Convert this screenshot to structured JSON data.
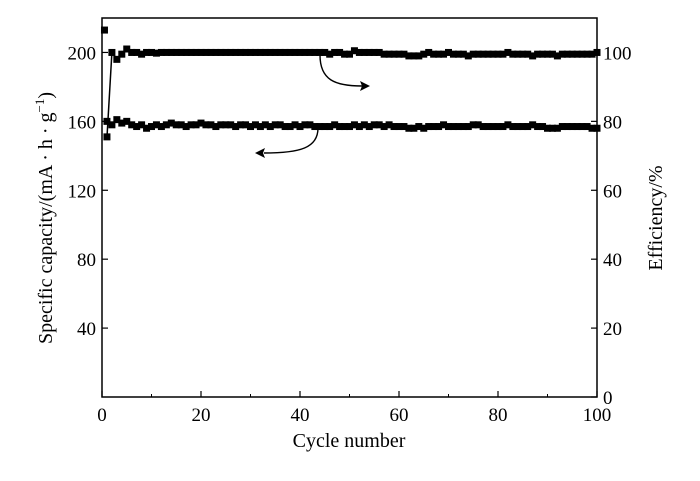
{
  "chart_data": {
    "type": "scatter",
    "xlabel": "Cycle number",
    "ylabel_left": {
      "prefix": "Specific capacity/(mA · h · g",
      "sup": "−1",
      "suffix": ")"
    },
    "ylabel_right": "Efficiency/%",
    "xlim": [
      0,
      100
    ],
    "ylim_left": [
      0,
      220
    ],
    "ylim_right": [
      0,
      110
    ],
    "x_ticks": [
      0,
      20,
      40,
      60,
      80,
      100
    ],
    "y_left_ticks": [
      40,
      80,
      120,
      160,
      200
    ],
    "y_right_ticks": [
      0,
      20,
      40,
      60,
      80,
      100
    ],
    "grid": false,
    "series": [
      {
        "axis": "left",
        "marker": "square",
        "x": [
          1,
          2,
          3,
          4,
          5,
          6,
          7,
          8,
          9,
          10,
          11,
          12,
          13,
          14,
          15,
          16,
          17,
          18,
          19,
          20,
          21,
          22,
          23,
          24,
          25,
          26,
          27,
          28,
          29,
          30,
          31,
          32,
          33,
          34,
          35,
          36,
          37,
          38,
          39,
          40,
          41,
          42,
          43,
          44,
          45,
          46,
          47,
          48,
          49,
          50,
          51,
          52,
          53,
          54,
          55,
          56,
          57,
          58,
          59,
          60,
          61,
          62,
          63,
          64,
          65,
          66,
          67,
          68,
          69,
          70,
          71,
          72,
          73,
          74,
          75,
          76,
          77,
          78,
          79,
          80,
          81,
          82,
          83,
          84,
          85,
          86,
          87,
          88,
          89,
          90,
          91,
          92,
          93,
          94,
          95,
          96,
          97,
          98,
          99,
          100
        ],
        "y": [
          160,
          158,
          161,
          159,
          160,
          158,
          157,
          158,
          156,
          157,
          158,
          157,
          158,
          159,
          158,
          158,
          157,
          158,
          158,
          159,
          158,
          158,
          157,
          158,
          158,
          158,
          157,
          158,
          158,
          157,
          158,
          157,
          158,
          157,
          158,
          158,
          157,
          157,
          158,
          157,
          158,
          158,
          157,
          157,
          157,
          157,
          158,
          157,
          157,
          157,
          158,
          157,
          158,
          157,
          158,
          158,
          157,
          158,
          157,
          157,
          157,
          156,
          156,
          157,
          156,
          157,
          157,
          157,
          158,
          157,
          157,
          157,
          157,
          157,
          158,
          158,
          157,
          157,
          157,
          157,
          157,
          158,
          157,
          157,
          157,
          157,
          158,
          157,
          157,
          156,
          156,
          156,
          157,
          157,
          157,
          157,
          157,
          157,
          156,
          156
        ]
      },
      {
        "axis": "right",
        "marker": "square",
        "x": [
          1,
          2,
          3,
          4,
          5,
          6,
          7,
          8,
          9,
          10,
          11,
          12,
          13,
          14,
          15,
          16,
          17,
          18,
          19,
          20,
          21,
          22,
          23,
          24,
          25,
          26,
          27,
          28,
          29,
          30,
          31,
          32,
          33,
          34,
          35,
          36,
          37,
          38,
          39,
          40,
          41,
          42,
          43,
          44,
          45,
          46,
          47,
          48,
          49,
          50,
          51,
          52,
          53,
          54,
          55,
          56,
          57,
          58,
          59,
          60,
          61,
          62,
          63,
          64,
          65,
          66,
          67,
          68,
          69,
          70,
          71,
          72,
          73,
          74,
          75,
          76,
          77,
          78,
          79,
          80,
          81,
          82,
          83,
          84,
          85,
          86,
          87,
          88,
          89,
          90,
          91,
          92,
          93,
          94,
          95,
          96,
          97,
          98,
          99,
          100
        ],
        "y": [
          75.5,
          100,
          98,
          99.5,
          101,
          100,
          100,
          99.5,
          100,
          100,
          99.8,
          100,
          100,
          100,
          100,
          100,
          100,
          100,
          100,
          100,
          100,
          100,
          100,
          100,
          100,
          100,
          100,
          100,
          100,
          100,
          100,
          100,
          100,
          100,
          100,
          100,
          100,
          100,
          100,
          100,
          100,
          100,
          100,
          100,
          100,
          99.5,
          100,
          100,
          99.5,
          99.5,
          100.5,
          100,
          100,
          100,
          100,
          100,
          99.5,
          99.5,
          99.5,
          99.5,
          99.5,
          99,
          99,
          99,
          99.5,
          100,
          99.5,
          99.5,
          99.5,
          100,
          99.5,
          99.5,
          99.5,
          99,
          99.5,
          99.5,
          99.5,
          99.5,
          99.5,
          99.5,
          99.5,
          100,
          99.5,
          99.5,
          99.5,
          99.5,
          99,
          99.5,
          99.5,
          99.5,
          99.5,
          99,
          99.5,
          99.5,
          99.5,
          99.5,
          99.5,
          99.5,
          99.5,
          100
        ]
      }
    ],
    "extra_points": [
      {
        "axis": "left",
        "x": 0.5,
        "y": 213
      }
    ],
    "annotations": [
      {
        "type": "arrow",
        "points_to": "left",
        "desc": "capacity series uses left axis"
      },
      {
        "type": "arrow",
        "points_to": "right",
        "desc": "efficiency series uses right axis"
      }
    ]
  }
}
